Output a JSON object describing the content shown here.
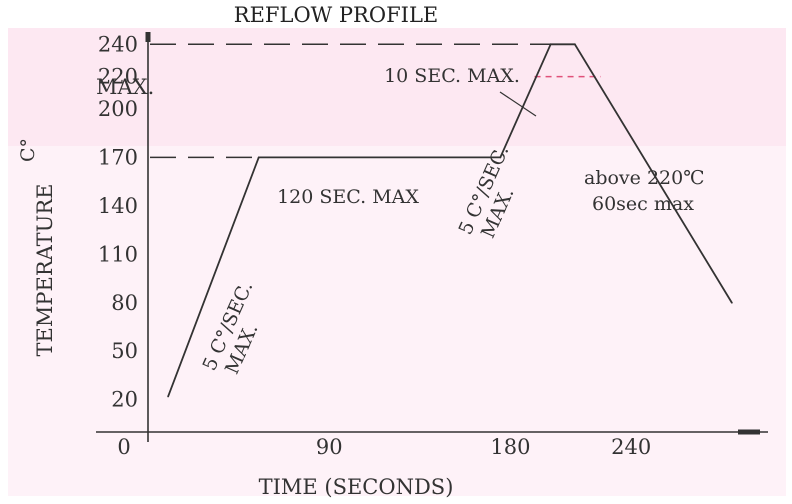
{
  "chart_data": {
    "type": "line",
    "title": "REFLOW PROFILE",
    "xlabel": "TIME (SECONDS)",
    "ylabel": "TEMPERATURE",
    "ylabel_unit": "C°",
    "xlim": [
      0,
      300
    ],
    "ylim": [
      0,
      260
    ],
    "x_ticks": [
      {
        "value": 0,
        "label": "0"
      },
      {
        "value": 90,
        "label": "90"
      },
      {
        "value": 180,
        "label": "180"
      },
      {
        "value": 240,
        "label": "240"
      }
    ],
    "y_ticks": [
      {
        "value": 20,
        "label": "20"
      },
      {
        "value": 50,
        "label": "50"
      },
      {
        "value": 80,
        "label": "80"
      },
      {
        "value": 110,
        "label": "110"
      },
      {
        "value": 140,
        "label": "140"
      },
      {
        "value": 170,
        "label": "170"
      },
      {
        "value": 200,
        "label": "200"
      },
      {
        "value": 220,
        "label": "220"
      },
      {
        "value": 240,
        "label": "240"
      }
    ],
    "y_max_label": "MAX.",
    "grid": false,
    "series": [
      {
        "x": [
          10,
          55,
          175,
          200,
          212,
          290
        ],
        "y": [
          22,
          170,
          170,
          240,
          240,
          80
        ]
      }
    ],
    "reference_lines": [
      {
        "y": 240,
        "x_from": 0,
        "x_to": 200,
        "style": "dashed",
        "color": "#333333"
      },
      {
        "y": 170,
        "x_from": 0,
        "x_to": 55,
        "style": "dashed",
        "color": "#333333"
      },
      {
        "y": 220,
        "x_from": 192,
        "x_to": 225,
        "style": "dashed",
        "color": "#e0507a"
      }
    ],
    "annotations": [
      {
        "text": "10 SEC. MAX."
      },
      {
        "text": "120 SEC. MAX"
      },
      {
        "text": "5 C°/SEC.",
        "sub": "MAX."
      },
      {
        "text": "5 C°/SEC.",
        "sub": "MAX."
      },
      {
        "text": "above 220℃",
        "sub": "60sec max"
      }
    ],
    "colors": {
      "line": "#333333",
      "axis": "#333333",
      "highlight": "#e0507a",
      "background_band": "#fde8f2"
    }
  }
}
